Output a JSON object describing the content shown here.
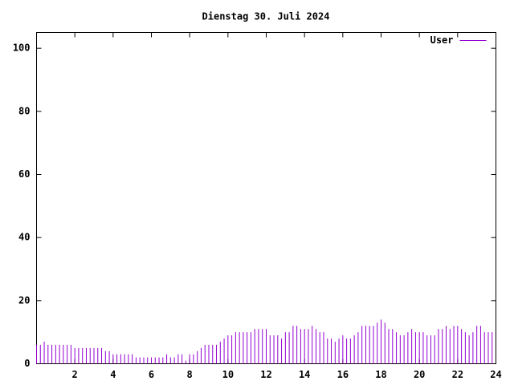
{
  "chart_data": {
    "type": "impulse",
    "title": "Dienstag 30. Juli 2024",
    "x": [
      0,
      0.2,
      0.4,
      0.6,
      0.8,
      1,
      1.2,
      1.4,
      1.6,
      1.8,
      2,
      2.2,
      2.4,
      2.6,
      2.8,
      3,
      3.2,
      3.4,
      3.6,
      3.8,
      4,
      4.2,
      4.4,
      4.6,
      4.8,
      5,
      5.2,
      5.4,
      5.6,
      5.8,
      6,
      6.2,
      6.4,
      6.6,
      6.8,
      7,
      7.2,
      7.4,
      7.6,
      7.8,
      8,
      8.2,
      8.4,
      8.6,
      8.8,
      9,
      9.2,
      9.4,
      9.6,
      9.8,
      10,
      10.2,
      10.4,
      10.6,
      10.8,
      11,
      11.2,
      11.4,
      11.6,
      11.8,
      12,
      12.2,
      12.4,
      12.6,
      12.8,
      13,
      13.2,
      13.4,
      13.6,
      13.8,
      14,
      14.2,
      14.4,
      14.6,
      14.8,
      15,
      15.2,
      15.4,
      15.6,
      15.8,
      16,
      16.2,
      16.4,
      16.6,
      16.8,
      17,
      17.2,
      17.4,
      17.6,
      17.8,
      18,
      18.2,
      18.4,
      18.6,
      18.8,
      19,
      19.2,
      19.4,
      19.6,
      19.8,
      20,
      20.2,
      20.4,
      20.6,
      20.8,
      21,
      21.2,
      21.4,
      21.6,
      21.8,
      22,
      22.2,
      22.4,
      22.6,
      22.8,
      23,
      23.2,
      23.4,
      23.6,
      23.8
    ],
    "series": [
      {
        "name": "User",
        "color": "#9400d3",
        "values": [
          6,
          6,
          7,
          6,
          6,
          6,
          6,
          6,
          6,
          6,
          5,
          5,
          5,
          5,
          5,
          5,
          5,
          5,
          4,
          4,
          3,
          3,
          3,
          3,
          3,
          3,
          2,
          2,
          2,
          2,
          2,
          2,
          2,
          2,
          3,
          2,
          2,
          3,
          3,
          1,
          3,
          3,
          4,
          5,
          6,
          6,
          6,
          6,
          7,
          8,
          9,
          9,
          10,
          10,
          10,
          10,
          10,
          11,
          11,
          11,
          11,
          9,
          9,
          9,
          8,
          10,
          10,
          12,
          12,
          11,
          11,
          11,
          12,
          11,
          10,
          10,
          8,
          8,
          7,
          8,
          9,
          8,
          8,
          9,
          10,
          12,
          12,
          12,
          12,
          13,
          14,
          13,
          11,
          11,
          10,
          9,
          9,
          10,
          11,
          10,
          10,
          10,
          9,
          9,
          9,
          11,
          11,
          12,
          11,
          12,
          12,
          11,
          10,
          9,
          10,
          12,
          12,
          10,
          10,
          10
        ]
      }
    ],
    "xlim": [
      0,
      24
    ],
    "xticks": [
      2,
      4,
      6,
      8,
      10,
      12,
      14,
      16,
      18,
      20,
      22,
      24
    ],
    "ylim": [
      0,
      105
    ],
    "yticks": [
      0,
      20,
      40,
      60,
      80,
      100
    ],
    "legend": "top-right"
  }
}
